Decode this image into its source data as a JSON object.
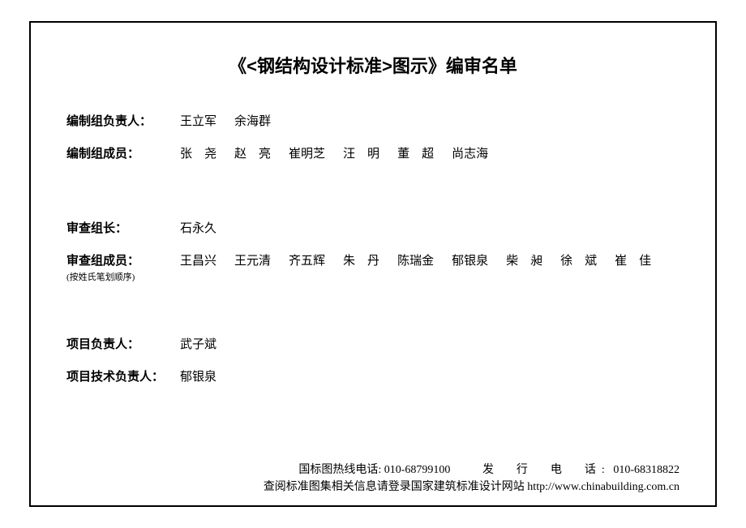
{
  "title": "《<钢结构设计标准>图示》编审名单",
  "rows": {
    "editor_lead": {
      "label": "编制组负责人：",
      "names": [
        "王立军",
        "余海群"
      ]
    },
    "editor_members": {
      "label": "编制组成员：",
      "names": [
        "张　尧",
        "赵　亮",
        "崔明芝",
        "汪　明",
        "董　超",
        "尚志海"
      ]
    },
    "review_lead": {
      "label": "审查组长：",
      "names": [
        "石永久"
      ]
    },
    "review_members": {
      "label": "审查组成员：",
      "sublabel": "(按姓氏笔划顺序)",
      "names": [
        "王昌兴",
        "王元清",
        "齐五辉",
        "朱　丹",
        "陈瑞金",
        "郁银泉",
        "柴　昶",
        "徐　斌",
        "崔　佳"
      ]
    },
    "project_lead": {
      "label": "项目负责人：",
      "names": [
        "武子斌"
      ]
    },
    "tech_lead": {
      "label": "项目技术负责人：",
      "names": [
        "郁银泉"
      ]
    }
  },
  "footer": {
    "hotline_label": "国标图热线电话:",
    "hotline_num": "010-68799100",
    "dist_label": "发　行　电　话:",
    "dist_num": "010-68318822",
    "line2": "查阅标准图集相关信息请登录国家建筑标准设计网站 http://www.chinabuilding.com.cn"
  }
}
